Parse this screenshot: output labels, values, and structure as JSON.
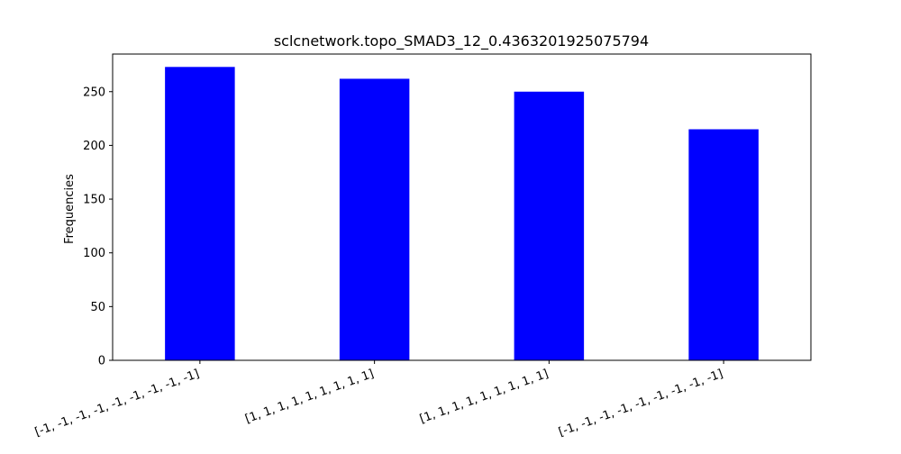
{
  "chart_data": {
    "type": "bar",
    "title": "sclcnetwork.topo_SMAD3_12_0.4363201925075794",
    "xlabel": "",
    "ylabel": "Frequencies",
    "categories": [
      "[-1, -1, -1, -1, -1, -1, -1, -1, -1]",
      "[1, 1, 1, 1, 1, 1, 1, 1, 1]",
      "[1, 1, 1, 1, 1, 1, 1, 1, 1]",
      "[-1, -1, -1, -1, -1, -1, -1, -1, -1]"
    ],
    "values": [
      273,
      262,
      250,
      215
    ],
    "ylim": [
      0,
      285
    ],
    "yticks": [
      0,
      50,
      100,
      150,
      200,
      250
    ],
    "bar_color": "#0000ff",
    "grid": false,
    "legend": "none"
  }
}
